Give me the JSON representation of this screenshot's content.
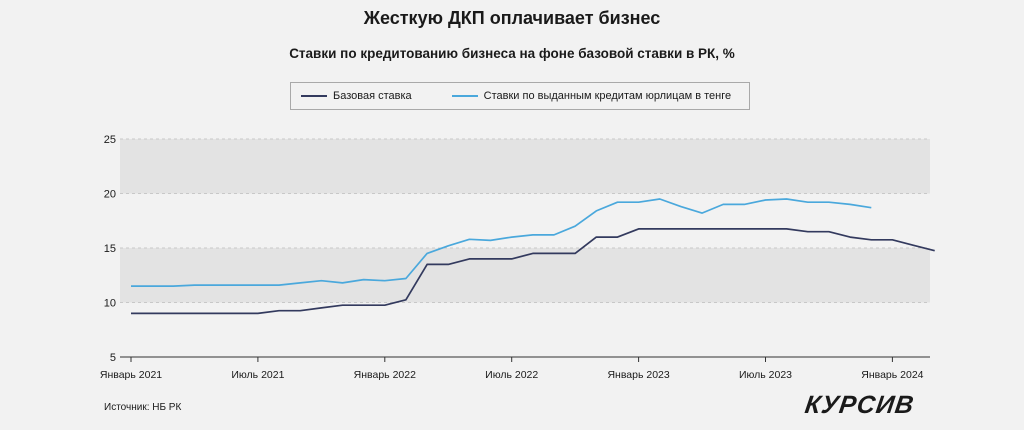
{
  "title": "Жесткую ДКП оплачивает бизнес",
  "subtitle": "Ставки по кредитованию бизнеса на фоне базовой ставки в РК, %",
  "source": "Источник: НБ РК",
  "logo": "КУРСИВ",
  "colors": {
    "base_rate": "#333a5e",
    "loan_rate": "#4aa8dc",
    "band": "#e3e3e3",
    "grid": "#c8c8c8"
  },
  "chart_data": {
    "type": "line",
    "ylim": [
      5,
      25
    ],
    "yticks": [
      5,
      10,
      15,
      20,
      25
    ],
    "xticks": [
      "Январь 2021",
      "Июль 2021",
      "Январь 2022",
      "Июль 2022",
      "Январь 2023",
      "Июль 2023",
      "Январь 2024"
    ],
    "legend_position": "top",
    "grid": true,
    "x_start": "2021-01",
    "series": [
      {
        "name": "Базовая ставка",
        "values": [
          9,
          9,
          9,
          9,
          9,
          9,
          9,
          9.25,
          9.25,
          9.5,
          9.75,
          9.75,
          9.75,
          10.25,
          13.5,
          13.5,
          14,
          14,
          14,
          14.5,
          14.5,
          14.5,
          16,
          16,
          16.75,
          16.75,
          16.75,
          16.75,
          16.75,
          16.75,
          16.75,
          16.75,
          16.5,
          16.5,
          16,
          15.75,
          15.75,
          15.25,
          14.75
        ]
      },
      {
        "name": "Ставки по выданным кредитам юрлицам в тенге",
        "values": [
          11.5,
          11.5,
          11.5,
          11.6,
          11.6,
          11.6,
          11.6,
          11.6,
          11.8,
          12.0,
          11.8,
          12.1,
          12.0,
          12.2,
          14.5,
          15.2,
          15.8,
          15.7,
          16.0,
          16.2,
          16.2,
          17.0,
          18.4,
          19.2,
          19.2,
          19.5,
          18.8,
          18.2,
          19.0,
          19.0,
          19.4,
          19.5,
          19.2,
          19.2,
          19.0,
          18.7
        ]
      }
    ]
  }
}
